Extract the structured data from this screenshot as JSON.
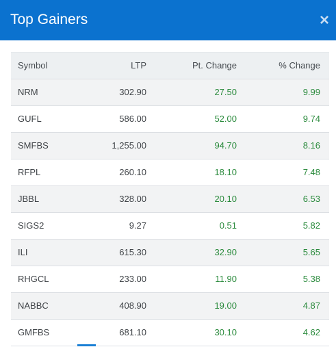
{
  "dialog": {
    "title": "Top Gainers",
    "close_label": "×"
  },
  "table": {
    "headers": {
      "symbol": "Symbol",
      "ltp": "LTP",
      "pt_change": "Pt. Change",
      "pct_change": "% Change"
    },
    "rows": [
      {
        "symbol": "NRM",
        "ltp": "302.90",
        "pt_change": "27.50",
        "pct_change": "9.99"
      },
      {
        "symbol": "GUFL",
        "ltp": "586.00",
        "pt_change": "52.00",
        "pct_change": "9.74"
      },
      {
        "symbol": "SMFBS",
        "ltp": "1,255.00",
        "pt_change": "94.70",
        "pct_change": "8.16"
      },
      {
        "symbol": "RFPL",
        "ltp": "260.10",
        "pt_change": "18.10",
        "pct_change": "7.48"
      },
      {
        "symbol": "JBBL",
        "ltp": "328.00",
        "pt_change": "20.10",
        "pct_change": "6.53"
      },
      {
        "symbol": "SIGS2",
        "ltp": "9.27",
        "pt_change": "0.51",
        "pct_change": "5.82"
      },
      {
        "symbol": "ILI",
        "ltp": "615.30",
        "pt_change": "32.90",
        "pct_change": "5.65"
      },
      {
        "symbol": "RHGCL",
        "ltp": "233.00",
        "pt_change": "11.90",
        "pct_change": "5.38"
      },
      {
        "symbol": "NABBC",
        "ltp": "408.90",
        "pt_change": "19.00",
        "pct_change": "4.87"
      },
      {
        "symbol": "GMFBS",
        "ltp": "681.10",
        "pt_change": "30.10",
        "pct_change": "4.62"
      }
    ]
  },
  "colors": {
    "header_bg": "#0b72cf",
    "positive": "#2a8a3c"
  },
  "icons": {
    "close": "close-icon"
  }
}
